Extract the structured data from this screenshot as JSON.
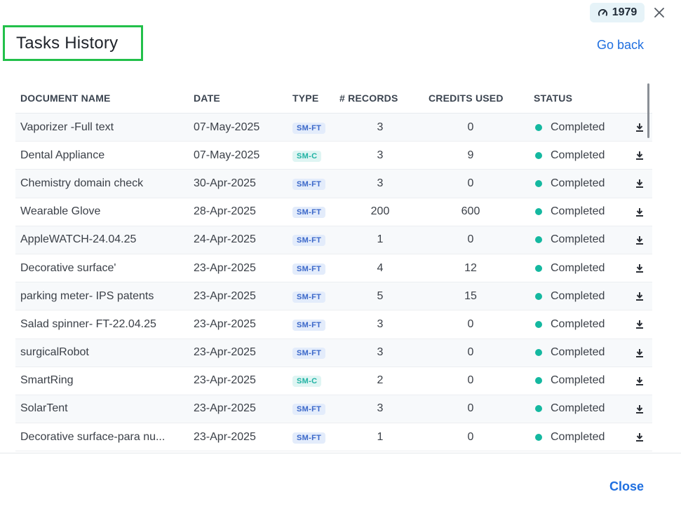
{
  "header": {
    "credits": "1979",
    "title": "Tasks History",
    "go_back": "Go back",
    "icons": {
      "credits": "speedometer-icon",
      "close": "close-icon"
    }
  },
  "table": {
    "columns": [
      "DOCUMENT NAME",
      "DATE",
      "TYPE",
      "# RECORDS",
      "CREDITS USED",
      "STATUS"
    ],
    "rows": [
      {
        "name": "Vaporizer -Full text",
        "date": "07-May-2025",
        "type": "SM-FT",
        "records": "3",
        "credits": "0",
        "status": "Completed"
      },
      {
        "name": " Dental Appliance",
        "date": "07-May-2025",
        "type": "SM-C",
        "records": "3",
        "credits": "9",
        "status": "Completed"
      },
      {
        "name": "Chemistry domain check",
        "date": "30-Apr-2025",
        "type": "SM-FT",
        "records": "3",
        "credits": "0",
        "status": "Completed"
      },
      {
        "name": "Wearable Glove",
        "date": "28-Apr-2025",
        "type": "SM-FT",
        "records": "200",
        "credits": "600",
        "status": "Completed"
      },
      {
        "name": "AppleWATCH-24.04.25",
        "date": "24-Apr-2025",
        "type": "SM-FT",
        "records": "1",
        "credits": "0",
        "status": "Completed"
      },
      {
        "name": " Decorative surface'",
        "date": "23-Apr-2025",
        "type": "SM-FT",
        "records": "4",
        "credits": "12",
        "status": "Completed"
      },
      {
        "name": " parking meter- IPS patents",
        "date": "23-Apr-2025",
        "type": "SM-FT",
        "records": "5",
        "credits": "15",
        "status": "Completed"
      },
      {
        "name": "  Salad spinner- FT-22.04.25",
        "date": "23-Apr-2025",
        "type": "SM-FT",
        "records": "3",
        "credits": "0",
        "status": "Completed"
      },
      {
        "name": "   surgicalRobot",
        "date": "23-Apr-2025",
        "type": "SM-FT",
        "records": "3",
        "credits": "0",
        "status": "Completed"
      },
      {
        "name": "SmartRing",
        "date": "23-Apr-2025",
        "type": "SM-C",
        "records": "2",
        "credits": "0",
        "status": "Completed"
      },
      {
        "name": "SolarTent",
        "date": "23-Apr-2025",
        "type": "SM-FT",
        "records": "3",
        "credits": "0",
        "status": "Completed"
      },
      {
        "name": "Decorative surface-para nu...",
        "date": "23-Apr-2025",
        "type": "SM-FT",
        "records": "1",
        "credits": "0",
        "status": "Completed"
      }
    ]
  },
  "footer": {
    "close": "Close"
  },
  "colors": {
    "accent": "#1f6fe0",
    "highlight_border": "#22c04a",
    "status_dot": "#14b8a0"
  }
}
